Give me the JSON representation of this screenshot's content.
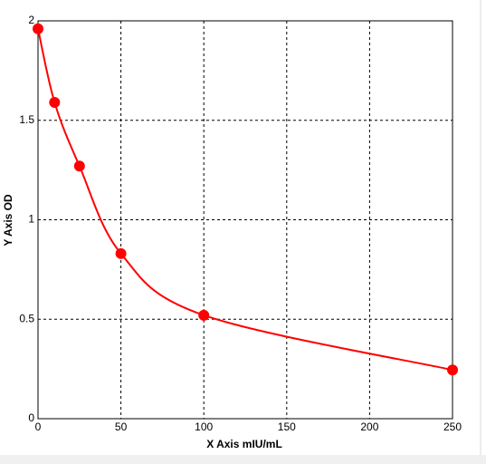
{
  "chart_data": {
    "type": "line",
    "x_label": "X Axis mIU/mL",
    "y_label": "Y Axis OD",
    "x": [
      0,
      10,
      25,
      50,
      100,
      250
    ],
    "series": [
      {
        "color": "#ff0000",
        "values": [
          1.96,
          1.59,
          1.27,
          0.83,
          0.52,
          0.245
        ]
      }
    ],
    "xlim": [
      0,
      250
    ],
    "xticks": [
      0,
      50,
      100,
      150,
      200,
      250
    ],
    "ylim": [
      0,
      2
    ],
    "yticks": [
      0,
      0.5,
      1,
      1.5,
      2
    ],
    "grid": true,
    "smooth": true,
    "markers": true
  }
}
